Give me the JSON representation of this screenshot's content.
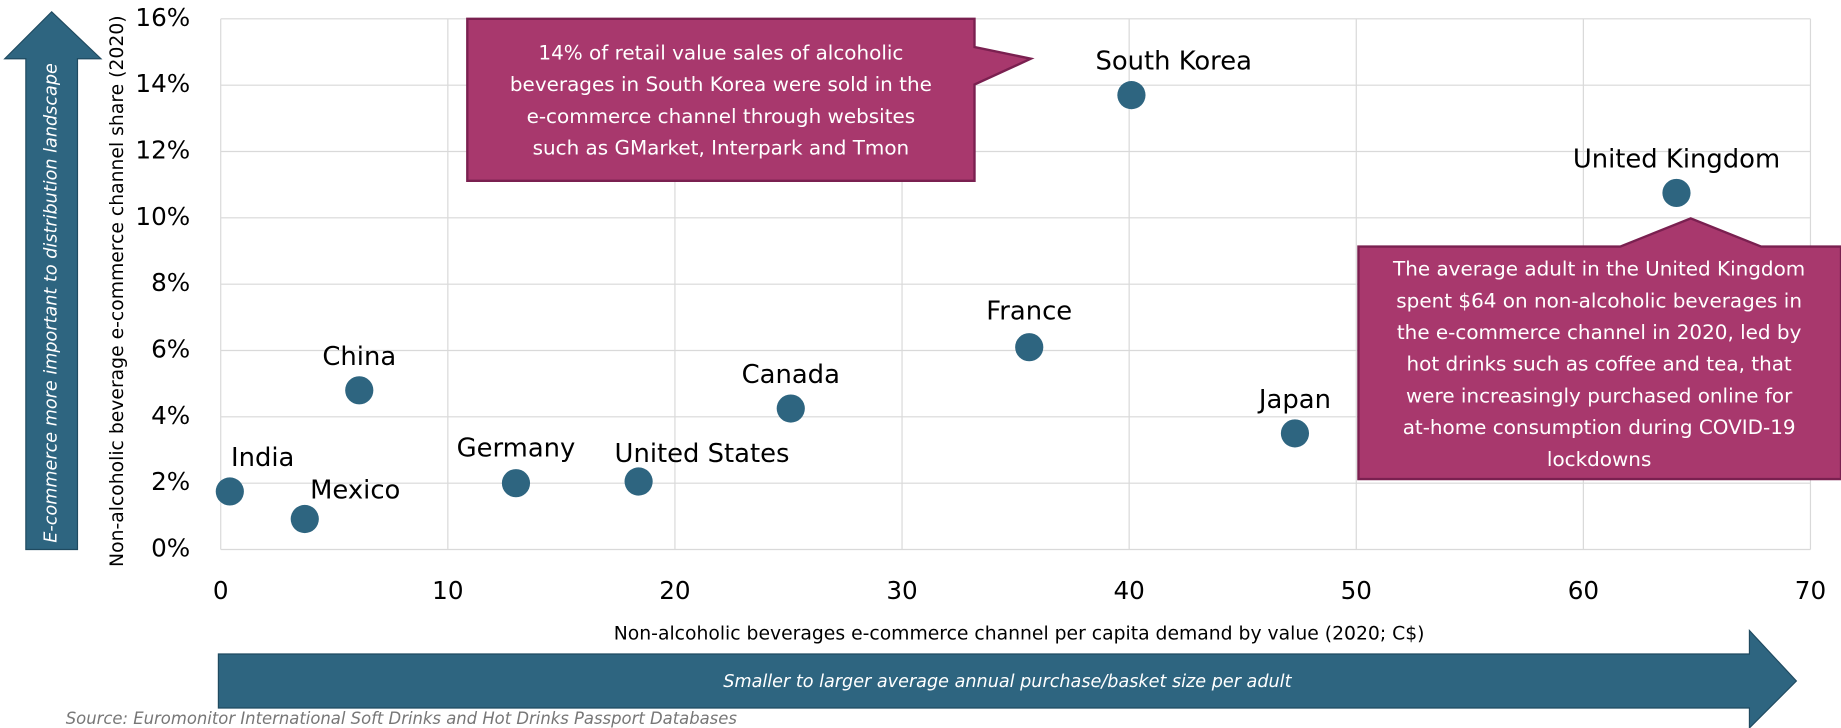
{
  "chart_data": {
    "type": "scatter",
    "x_label": "Non-alcoholic beverages e-commerce channel per capita demand by value (2020;  C$)",
    "y_label": "Non-alcoholic beverage e-commerce channel share (2020)",
    "labels": [
      "India",
      "Mexico",
      "China",
      "Germany",
      "United States",
      "Canada",
      "France",
      "South Korea",
      "Japan",
      "United Kingdom"
    ],
    "x": [
      0.4,
      3.7,
      6.1,
      13.0,
      18.4,
      25.1,
      35.6,
      40.1,
      47.3,
      64.1
    ],
    "values": [
      1.75,
      0.92,
      4.8,
      2.0,
      2.05,
      4.25,
      6.1,
      13.7,
      3.5,
      10.75
    ],
    "color": "#2e6580",
    "xlim": [
      0,
      70
    ],
    "xticks": [
      0,
      10,
      20,
      30,
      40,
      50,
      60,
      70
    ],
    "ylim": [
      0,
      16
    ],
    "yticks": [
      {
        "value": 0,
        "label": "0%"
      },
      {
        "value": 2,
        "label": "2%"
      },
      {
        "value": 4,
        "label": "4%"
      },
      {
        "value": 6,
        "label": "6%"
      },
      {
        "value": 8,
        "label": "8%"
      },
      {
        "value": 10,
        "label": "10%"
      },
      {
        "value": 12,
        "label": "12%"
      },
      {
        "value": 14,
        "label": "14%"
      },
      {
        "value": 16,
        "label": "16%"
      }
    ],
    "grid": true,
    "annotations": [
      [
        "14% of retail value sales of alcoholic",
        "beverages in South Korea were sold in the",
        "e-commerce channel through websites",
        "such as GMarket, Interpark and Tmon"
      ],
      [
        "The average adult in the United Kingdom",
        "spent $64 on non-alcoholic beverages in",
        "the e-commerce channel in 2020, led by",
        "hot drinks such as coffee and tea, that",
        "were increasingly purchased online for",
        "at-home consumption during COVID-19",
        "lockdowns"
      ]
    ],
    "y_arrow_text": "E-commerce  more  important to distribution landscape",
    "x_arrow_text": "Smaller to larger average annual purchase/basket size per adult",
    "source": "Source:  Euromonitor International Soft Drinks and Hot Drinks Passport Databases"
  }
}
